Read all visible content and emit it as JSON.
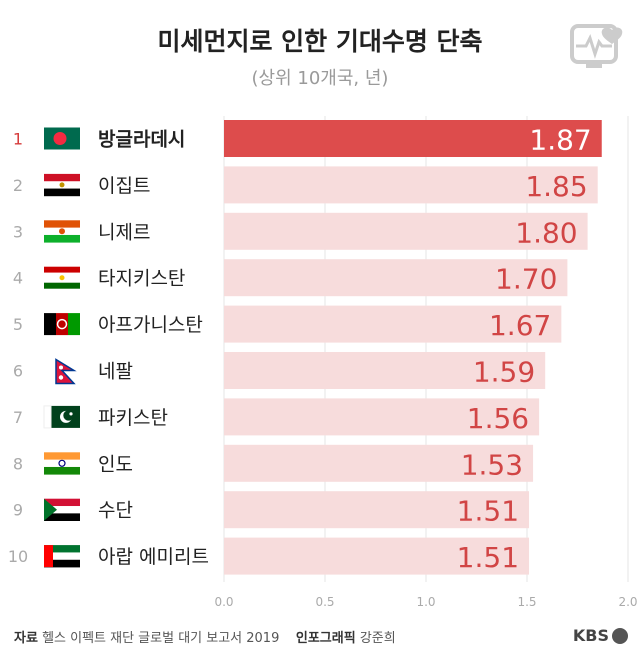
{
  "header": {
    "title": "미세먼지로 인한 기대수명 단축",
    "subtitle": "(상위 10개국, 년)"
  },
  "chart_data": {
    "type": "bar",
    "orientation": "horizontal",
    "title": "미세먼지로 인한 기대수명 단축",
    "subtitle": "(상위 10개국, 년)",
    "ranks": [
      "1",
      "2",
      "3",
      "4",
      "5",
      "6",
      "7",
      "8",
      "9",
      "10"
    ],
    "categories": [
      "방글라데시",
      "이집트",
      "니제르",
      "타지키스탄",
      "아프가니스탄",
      "네팔",
      "파키스탄",
      "인도",
      "수단",
      "아랍 에미리트"
    ],
    "values": [
      1.87,
      1.85,
      1.8,
      1.7,
      1.67,
      1.59,
      1.56,
      1.53,
      1.51,
      1.51
    ],
    "value_labels": [
      "1.87",
      "1.85",
      "1.80",
      "1.70",
      "1.67",
      "1.59",
      "1.56",
      "1.53",
      "1.51",
      "1.51"
    ],
    "xlim": [
      0,
      2.0
    ],
    "xticks": [
      "0.0",
      "0.5",
      "1.0",
      "1.5",
      "2.0"
    ],
    "xtick_values": [
      0,
      0.5,
      1.0,
      1.5,
      2.0
    ],
    "highlight_index": 0,
    "colors": {
      "highlight": "#dd4c4c",
      "bar": "#f7dcdc",
      "label_highlight": "#ffffff",
      "label": "#d14545",
      "rank_highlight": "#d63c3c",
      "rank": "#aaaaaa"
    },
    "flags": [
      "bangladesh-flag",
      "egypt-flag",
      "niger-flag",
      "tajikistan-flag",
      "afghanistan-flag",
      "nepal-flag",
      "pakistan-flag",
      "india-flag",
      "sudan-flag",
      "uae-flag"
    ]
  },
  "footer": {
    "source_label": "자료",
    "source_text": "헬스 이펙트 재단 글로벌 대기 보고서 2019",
    "credit_label": "인포그래픽",
    "credit_text": "강준희",
    "brand": "KBS"
  }
}
